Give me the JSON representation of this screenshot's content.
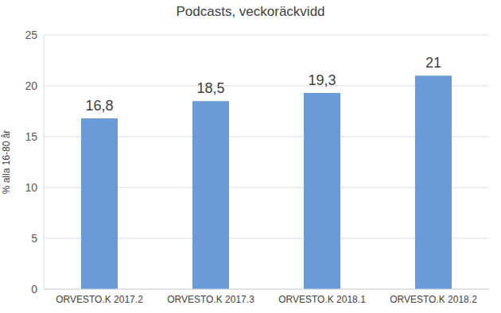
{
  "chart_data": {
    "type": "bar",
    "title": "Podcasts, veckoräckvidd",
    "y_label": "% alla 16-80 år",
    "categories": [
      "ORVESTO.K 2017.2",
      "ORVESTO.K 2017.3",
      "ORVESTO.K 2018.1",
      "ORVESTO.K 2018.2"
    ],
    "values": [
      16.8,
      18.5,
      19.3,
      21
    ],
    "value_labels": [
      "16,8",
      "18,5",
      "19,3",
      "21"
    ],
    "data_labels": true,
    "color": "#6a9bd8",
    "ylim": [
      0,
      25
    ],
    "yticks": [
      0,
      5,
      10,
      15,
      20,
      25
    ],
    "grid": true
  }
}
